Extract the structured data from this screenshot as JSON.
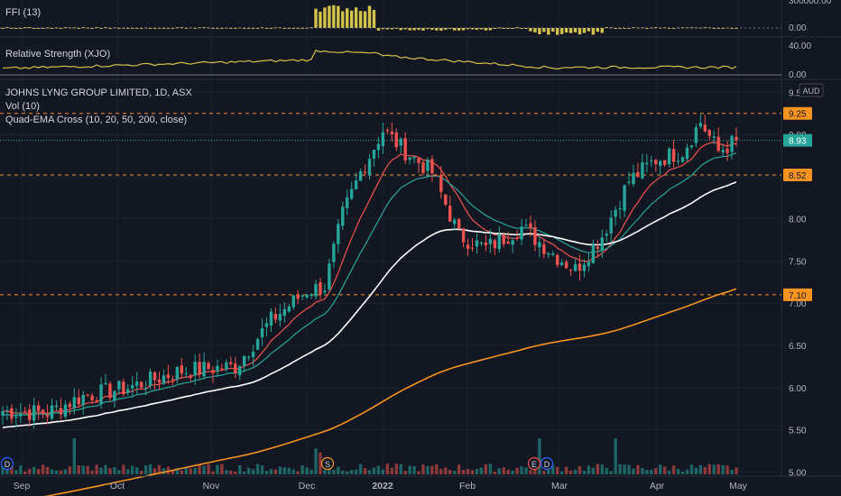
{
  "chart_data": {
    "type": "candlestick",
    "symbol_line": "JOHNS LYNG GROUP LIMITED, 1D, ASX",
    "currency_label": "AUD",
    "indicators": {
      "ffi_label": "FFI (13)",
      "rs_label": "Relative Strength (XJO)",
      "vol_label": "Vol (10)",
      "ema_label": "Quad-EMA Cross (10, 20, 50, 200, close)"
    },
    "ffi_axis_ticks": [
      "300000.00",
      "0.00",
      "-0.00"
    ],
    "rs_axis_ticks": [
      "40.00",
      "0.00"
    ],
    "price_axis_ticks": [
      "9.50",
      "9.00",
      "8.50",
      "8.00",
      "7.50",
      "7.00",
      "6.50",
      "6.00",
      "5.50",
      "5.00"
    ],
    "price_ylim": [
      4.95,
      9.6
    ],
    "x_labels": [
      "Sep",
      "Oct",
      "Nov",
      "Dec",
      "2022",
      "Feb",
      "Mar",
      "Apr",
      "May"
    ],
    "level_lines": [
      9.25,
      8.52,
      7.1
    ],
    "level_labels": [
      "9.25",
      "8.52",
      "7.10"
    ],
    "last_price_label": "8.93",
    "last_price": 8.93,
    "event_markers": [
      "D",
      "S",
      "E",
      "D"
    ],
    "close_series_anchors": [
      [
        0,
        5.72
      ],
      [
        10,
        5.7
      ],
      [
        18,
        5.9
      ],
      [
        28,
        6.0
      ],
      [
        40,
        6.2
      ],
      [
        52,
        6.25
      ],
      [
        60,
        6.8
      ],
      [
        68,
        7.15
      ],
      [
        72,
        7.2
      ],
      [
        76,
        8.05
      ],
      [
        80,
        8.55
      ],
      [
        85,
        9.05
      ],
      [
        90,
        8.8
      ],
      [
        96,
        8.55
      ],
      [
        102,
        7.8
      ],
      [
        108,
        7.65
      ],
      [
        116,
        7.9
      ],
      [
        124,
        7.55
      ],
      [
        128,
        7.4
      ],
      [
        134,
        7.8
      ],
      [
        140,
        8.45
      ],
      [
        146,
        8.7
      ],
      [
        152,
        8.8
      ],
      [
        156,
        9.15
      ],
      [
        160,
        8.8
      ],
      [
        164,
        8.93
      ]
    ],
    "ema_colors": {
      "ema10": "#ef5350",
      "ema20": "#26a69a",
      "ema50": "#ffffff",
      "ema200": "#f7931e"
    },
    "colors": {
      "up": "#26a69a",
      "down": "#ef5350",
      "level": "#f7931e",
      "grid": "#1e222d",
      "ffi": "#d4c34a",
      "rs": "#d4c34a",
      "axis_text": "#b2b5be"
    }
  }
}
